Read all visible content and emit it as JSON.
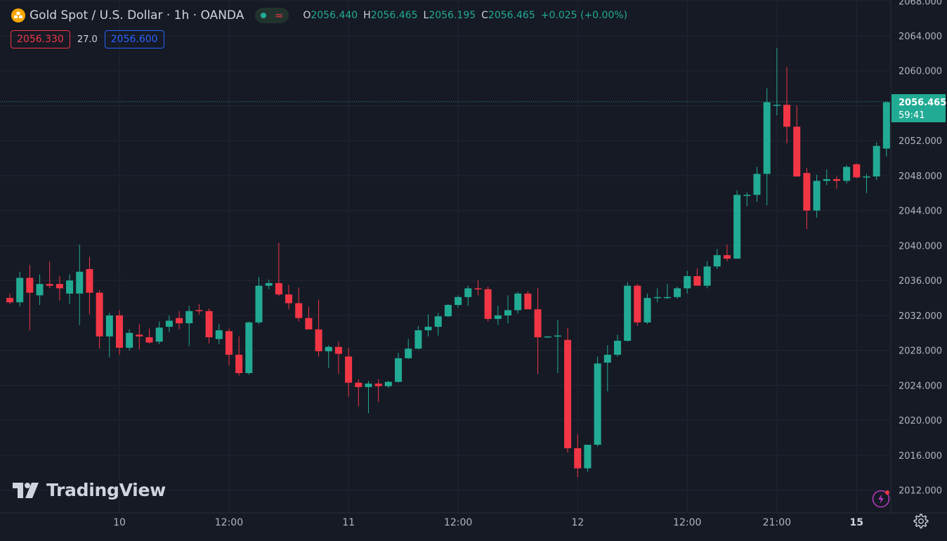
{
  "header": {
    "symbol_title": "Gold Spot / U.S. Dollar · 1h · OANDA",
    "ohlc": {
      "o_label": "O",
      "o_value": "2056.440",
      "h_label": "H",
      "h_value": "2056.465",
      "l_label": "L",
      "l_value": "2056.195",
      "c_label": "C",
      "c_value": "2056.465",
      "change": "+0.025 (+0.00%)"
    }
  },
  "quotes": {
    "sell": "2056.330",
    "spread": "27.0",
    "buy": "2056.600"
  },
  "price_tag": {
    "price": "2056.465",
    "countdown": "59:41"
  },
  "logo_text": "TradingView",
  "colors": {
    "background": "#161a25",
    "up": "#22ab94",
    "down": "#f23645",
    "grid": "#232632",
    "text": "#b2b5be",
    "accent_blue": "#2962ff",
    "logo_orange": "#f7a600"
  },
  "chart_data": {
    "type": "candlestick",
    "title": "Gold Spot / U.S. Dollar",
    "interval": "1h",
    "source": "OANDA",
    "y_axis": {
      "ticks": [
        "2012.000",
        "2016.000",
        "2020.000",
        "2024.000",
        "2028.000",
        "2032.000",
        "2036.000",
        "2040.000",
        "2044.000",
        "2048.000",
        "2052.000",
        "2056.000",
        "2060.000",
        "2064.000",
        "2068.000"
      ],
      "range": [
        2009.4,
        2068.1
      ]
    },
    "x_axis": {
      "labels": [
        {
          "text": "10",
          "index": 11,
          "bold": false
        },
        {
          "text": "12:00",
          "index": 22,
          "bold": false
        },
        {
          "text": "11",
          "index": 34,
          "bold": false
        },
        {
          "text": "12:00",
          "index": 45,
          "bold": false
        },
        {
          "text": "12",
          "index": 57,
          "bold": false
        },
        {
          "text": "12:00",
          "index": 68,
          "bold": false
        },
        {
          "text": "21:00",
          "index": 77,
          "bold": false
        },
        {
          "text": "15",
          "index": 85,
          "bold": true
        }
      ]
    },
    "last_price": 2056.465,
    "candles": [
      [
        2034.0,
        2034.5,
        2033.3,
        2033.5
      ],
      [
        2033.5,
        2037.0,
        2033.0,
        2036.3
      ],
      [
        2036.3,
        2037.8,
        2030.3,
        2034.6
      ],
      [
        2034.3,
        2036.7,
        2033.2,
        2035.6
      ],
      [
        2035.6,
        2038.2,
        2035.1,
        2035.4
      ],
      [
        2035.6,
        2036.5,
        2033.7,
        2035.1
      ],
      [
        2034.5,
        2036.7,
        2033.3,
        2036.0
      ],
      [
        2034.5,
        2040.1,
        2030.9,
        2037.0
      ],
      [
        2037.3,
        2038.7,
        2032.1,
        2034.6
      ],
      [
        2034.6,
        2034.9,
        2028.2,
        2029.6
      ],
      [
        2029.6,
        2032.3,
        2027.2,
        2032.0
      ],
      [
        2032.0,
        2032.6,
        2027.5,
        2028.3
      ],
      [
        2028.3,
        2030.4,
        2028.0,
        2030.0
      ],
      [
        2029.8,
        2031.0,
        2028.1,
        2029.6
      ],
      [
        2029.5,
        2030.5,
        2028.8,
        2028.9
      ],
      [
        2029.0,
        2031.3,
        2028.7,
        2030.6
      ],
      [
        2030.7,
        2032.0,
        2030.1,
        2031.4
      ],
      [
        2031.7,
        2032.5,
        2030.4,
        2031.1
      ],
      [
        2031.1,
        2033.1,
        2028.5,
        2032.5
      ],
      [
        2032.6,
        2033.3,
        2032.1,
        2032.5
      ],
      [
        2032.5,
        2032.8,
        2028.8,
        2029.5
      ],
      [
        2029.3,
        2031.0,
        2028.7,
        2030.3
      ],
      [
        2030.2,
        2030.5,
        2026.3,
        2027.5
      ],
      [
        2027.5,
        2029.6,
        2025.1,
        2025.4
      ],
      [
        2025.4,
        2031.3,
        2025.2,
        2031.2
      ],
      [
        2031.2,
        2036.4,
        2031.0,
        2035.4
      ],
      [
        2035.4,
        2036.1,
        2035.0,
        2035.7
      ],
      [
        2035.7,
        2040.3,
        2034.2,
        2034.4
      ],
      [
        2034.4,
        2035.5,
        2032.7,
        2033.4
      ],
      [
        2033.4,
        2035.2,
        2031.3,
        2031.7
      ],
      [
        2031.7,
        2033.0,
        2030.9,
        2030.4
      ],
      [
        2030.4,
        2033.8,
        2027.3,
        2027.9
      ],
      [
        2027.9,
        2028.6,
        2026.0,
        2028.4
      ],
      [
        2028.4,
        2029.0,
        2025.3,
        2027.6
      ],
      [
        2027.3,
        2028.3,
        2022.7,
        2024.3
      ],
      [
        2024.3,
        2024.7,
        2021.6,
        2023.8
      ],
      [
        2023.8,
        2024.5,
        2020.8,
        2024.2
      ],
      [
        2024.2,
        2024.7,
        2022.1,
        2023.9
      ],
      [
        2023.9,
        2024.5,
        2023.7,
        2024.4
      ],
      [
        2024.4,
        2027.7,
        2024.3,
        2027.1
      ],
      [
        2027.1,
        2029.3,
        2027.0,
        2028.2
      ],
      [
        2028.2,
        2030.8,
        2028.1,
        2030.3
      ],
      [
        2030.3,
        2032.1,
        2029.6,
        2030.7
      ],
      [
        2030.7,
        2032.3,
        2029.7,
        2031.9
      ],
      [
        2031.9,
        2033.3,
        2031.8,
        2033.2
      ],
      [
        2033.2,
        2034.3,
        2032.9,
        2034.1
      ],
      [
        2034.1,
        2035.4,
        2033.1,
        2035.1
      ],
      [
        2035.1,
        2036.0,
        2034.3,
        2035.0
      ],
      [
        2035.0,
        2035.3,
        2031.3,
        2031.6
      ],
      [
        2031.6,
        2033.1,
        2030.9,
        2032.0
      ],
      [
        2032.0,
        2034.3,
        2031.1,
        2032.6
      ],
      [
        2032.6,
        2034.7,
        2032.2,
        2034.5
      ],
      [
        2034.5,
        2034.8,
        2032.8,
        2032.7
      ],
      [
        2032.7,
        2035.1,
        2025.3,
        2029.5
      ],
      [
        2029.5,
        2029.5,
        2029.4,
        2029.6
      ],
      [
        2029.6,
        2031.5,
        2025.4,
        2029.7
      ],
      [
        2029.2,
        2030.6,
        2016.3,
        2016.8
      ],
      [
        2016.8,
        2018.4,
        2013.5,
        2014.5
      ],
      [
        2014.5,
        2017.1,
        2014.1,
        2017.2
      ],
      [
        2017.2,
        2027.3,
        2017.0,
        2026.5
      ],
      [
        2026.6,
        2028.6,
        2023.3,
        2027.5
      ],
      [
        2027.5,
        2029.8,
        2027.3,
        2029.1
      ],
      [
        2029.1,
        2035.8,
        2029.0,
        2035.4
      ],
      [
        2035.4,
        2035.6,
        2030.8,
        2031.2
      ],
      [
        2031.2,
        2034.5,
        2031.0,
        2034.0
      ],
      [
        2034.0,
        2035.1,
        2033.5,
        2034.1
      ],
      [
        2034.1,
        2035.6,
        2033.9,
        2034.1
      ],
      [
        2034.1,
        2035.3,
        2033.9,
        2035.1
      ],
      [
        2035.1,
        2037.1,
        2034.5,
        2036.5
      ],
      [
        2036.5,
        2037.4,
        2035.5,
        2035.4
      ],
      [
        2035.4,
        2038.2,
        2035.1,
        2037.6
      ],
      [
        2037.6,
        2039.6,
        2037.3,
        2038.9
      ],
      [
        2038.9,
        2040.1,
        2038.2,
        2038.5
      ],
      [
        2038.5,
        2046.3,
        2038.5,
        2045.8
      ],
      [
        2045.8,
        2046.1,
        2044.5,
        2045.8
      ],
      [
        2045.8,
        2049.0,
        2045.0,
        2048.2
      ],
      [
        2048.2,
        2058.0,
        2044.6,
        2056.4
      ],
      [
        2056.1,
        2062.6,
        2054.9,
        2056.1
      ],
      [
        2056.1,
        2060.4,
        2051.7,
        2053.6
      ],
      [
        2053.6,
        2056.0,
        2047.9,
        2047.9
      ],
      [
        2048.3,
        2048.9,
        2041.9,
        2044.0
      ],
      [
        2044.0,
        2048.1,
        2043.2,
        2047.4
      ],
      [
        2047.4,
        2048.7,
        2046.9,
        2047.6
      ],
      [
        2047.6,
        2047.9,
        2046.5,
        2047.4
      ],
      [
        2047.4,
        2049.2,
        2047.1,
        2049.0
      ],
      [
        2049.3,
        2049.4,
        2047.7,
        2047.8
      ],
      [
        2047.8,
        2048.2,
        2046.0,
        2047.9
      ],
      [
        2047.9,
        2051.8,
        2047.5,
        2051.4
      ],
      [
        2051.1,
        2056.5,
        2050.2,
        2056.4
      ],
      [
        2056.4,
        2056.5,
        2056.2,
        2056.5
      ]
    ]
  }
}
